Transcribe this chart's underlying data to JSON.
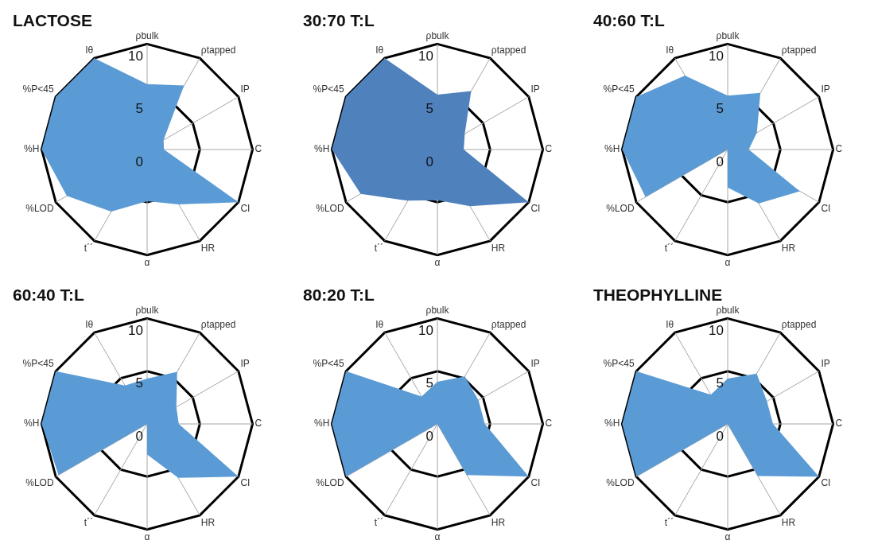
{
  "chart_data": [
    {
      "type": "radar",
      "title": "LACTOSE",
      "categories": [
        "ρbulk",
        "ρtapped",
        "IP",
        "C",
        "CI",
        "HR",
        "α",
        "t´´",
        "%LOD",
        "%H",
        "%P<45",
        "Iθ"
      ],
      "ylim": [
        0,
        10
      ],
      "yticks": [
        0,
        5,
        10
      ],
      "grid": true,
      "legend": false,
      "marker": "none",
      "series": [
        {
          "color": "#5b9bd5",
          "values": [
            6.2,
            7.0,
            1.8,
            1.6,
            10,
            6.0,
            4.9,
            6.8,
            8.8,
            10,
            10,
            10
          ]
        }
      ]
    },
    {
      "type": "radar",
      "title": "30:70 T:L",
      "categories": [
        "ρbulk",
        "ρtapped",
        "IP",
        "C",
        "CI",
        "HR",
        "α",
        "t´´",
        "%LOD",
        "%H",
        "%P<45",
        "Iθ"
      ],
      "ylim": [
        0,
        10
      ],
      "yticks": [
        0,
        5,
        10
      ],
      "grid": true,
      "legend": false,
      "marker": "none",
      "series": [
        {
          "color": "#4f81bd",
          "values": [
            5.2,
            6.4,
            3.0,
            2.5,
            10,
            6.2,
            4.8,
            5.6,
            8.4,
            10,
            10,
            10
          ]
        }
      ]
    },
    {
      "type": "radar",
      "title": "40:60 T:L",
      "categories": [
        "ρbulk",
        "ρtapped",
        "IP",
        "C",
        "CI",
        "HR",
        "α",
        "t´´",
        "%LOD",
        "%H",
        "%P<45",
        "Iθ"
      ],
      "ylim": [
        0,
        10
      ],
      "yticks": [
        0,
        5,
        10
      ],
      "grid": true,
      "legend": false,
      "marker": "none",
      "series": [
        {
          "color": "#5b9bd5",
          "values": [
            5.1,
            6.2,
            3.2,
            2.0,
            7.9,
            5.9,
            3.6,
            0,
            9.0,
            10,
            10,
            8.1
          ]
        }
      ]
    },
    {
      "type": "radar",
      "title": "60:40 T:L",
      "categories": [
        "ρbulk",
        "ρtapped",
        "IP",
        "C",
        "CI",
        "HR",
        "α",
        "t´´",
        "%LOD",
        "%H",
        "%P<45",
        "Iθ"
      ],
      "ylim": [
        0,
        10
      ],
      "yticks": [
        0,
        5,
        10
      ],
      "grid": true,
      "legend": false,
      "marker": "none",
      "series": [
        {
          "color": "#5b9bd5",
          "values": [
            4.3,
            5.7,
            3.2,
            3.0,
            10,
            5.9,
            2.9,
            0,
            9.7,
            10,
            10,
            4.2
          ]
        }
      ]
    },
    {
      "type": "radar",
      "title": "80:20 T:L",
      "categories": [
        "ρbulk",
        "ρtapped",
        "IP",
        "C",
        "CI",
        "HR",
        "α",
        "t´´",
        "%LOD",
        "%H",
        "%P<45",
        "Iθ"
      ],
      "ylim": [
        0,
        10
      ],
      "yticks": [
        0,
        5,
        10
      ],
      "grid": true,
      "legend": false,
      "marker": "none",
      "series": [
        {
          "color": "#5b9bd5",
          "values": [
            4.0,
            5.2,
            4.5,
            4.5,
            10,
            5.6,
            0,
            0,
            10,
            10,
            10,
            3.0
          ]
        }
      ]
    },
    {
      "type": "radar",
      "title": "THEOPHYLLINE",
      "categories": [
        "ρbulk",
        "ρtapped",
        "IP",
        "C",
        "CI",
        "HR",
        "α",
        "t´´",
        "%LOD",
        "%H",
        "%P<45",
        "Iθ"
      ],
      "ylim": [
        0,
        10
      ],
      "yticks": [
        0,
        5,
        10
      ],
      "grid": true,
      "legend": false,
      "marker": "none",
      "series": [
        {
          "color": "#5b9bd5",
          "values": [
            4.3,
            5.5,
            4.3,
            4.3,
            10,
            5.7,
            0,
            0,
            10,
            10,
            10,
            3.2
          ]
        }
      ]
    }
  ]
}
